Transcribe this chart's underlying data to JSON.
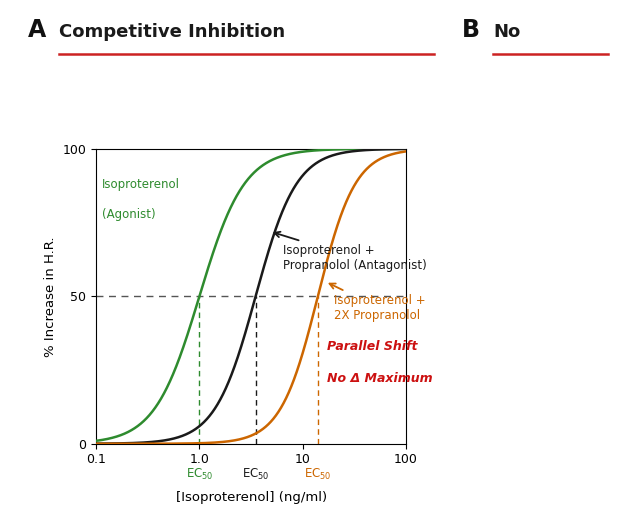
{
  "title": "Competitive Inhibition",
  "section_label_a": "A",
  "section_label_b": "B",
  "panel_b_partial": "No",
  "xlabel": "[Isoproterenol] (ng/ml)",
  "ylabel": "% Increase in H.R.",
  "title_color": "#1a1a1a",
  "title_underline_color": "#cc2222",
  "ylim": [
    0,
    100
  ],
  "xticks": [
    0.1,
    1.0,
    10,
    100
  ],
  "yticks": [
    0,
    50,
    100
  ],
  "curve1_ec50": 1.0,
  "curve1_hill": 2.0,
  "curve1_color": "#2e8b2e",
  "curve1_label1": "Isoproterenol",
  "curve1_label2": "(Agonist)",
  "curve2_ec50": 3.5,
  "curve2_hill": 2.2,
  "curve2_color": "#1a1a1a",
  "curve2_label1": "Isoproterenol +",
  "curve2_label2": "Propranolol (Antagonist)",
  "curve3_ec50": 14.0,
  "curve3_hill": 2.4,
  "curve3_color": "#cc6600",
  "curve3_label1": "Isoproterenol +",
  "curve3_label2": "2X Propranolol",
  "dashed_y": 50,
  "annotation_line1": "Parallel Shift",
  "annotation_line2": "No Δ Maximum",
  "annotation_color": "#cc1111",
  "background_color": "#ffffff"
}
